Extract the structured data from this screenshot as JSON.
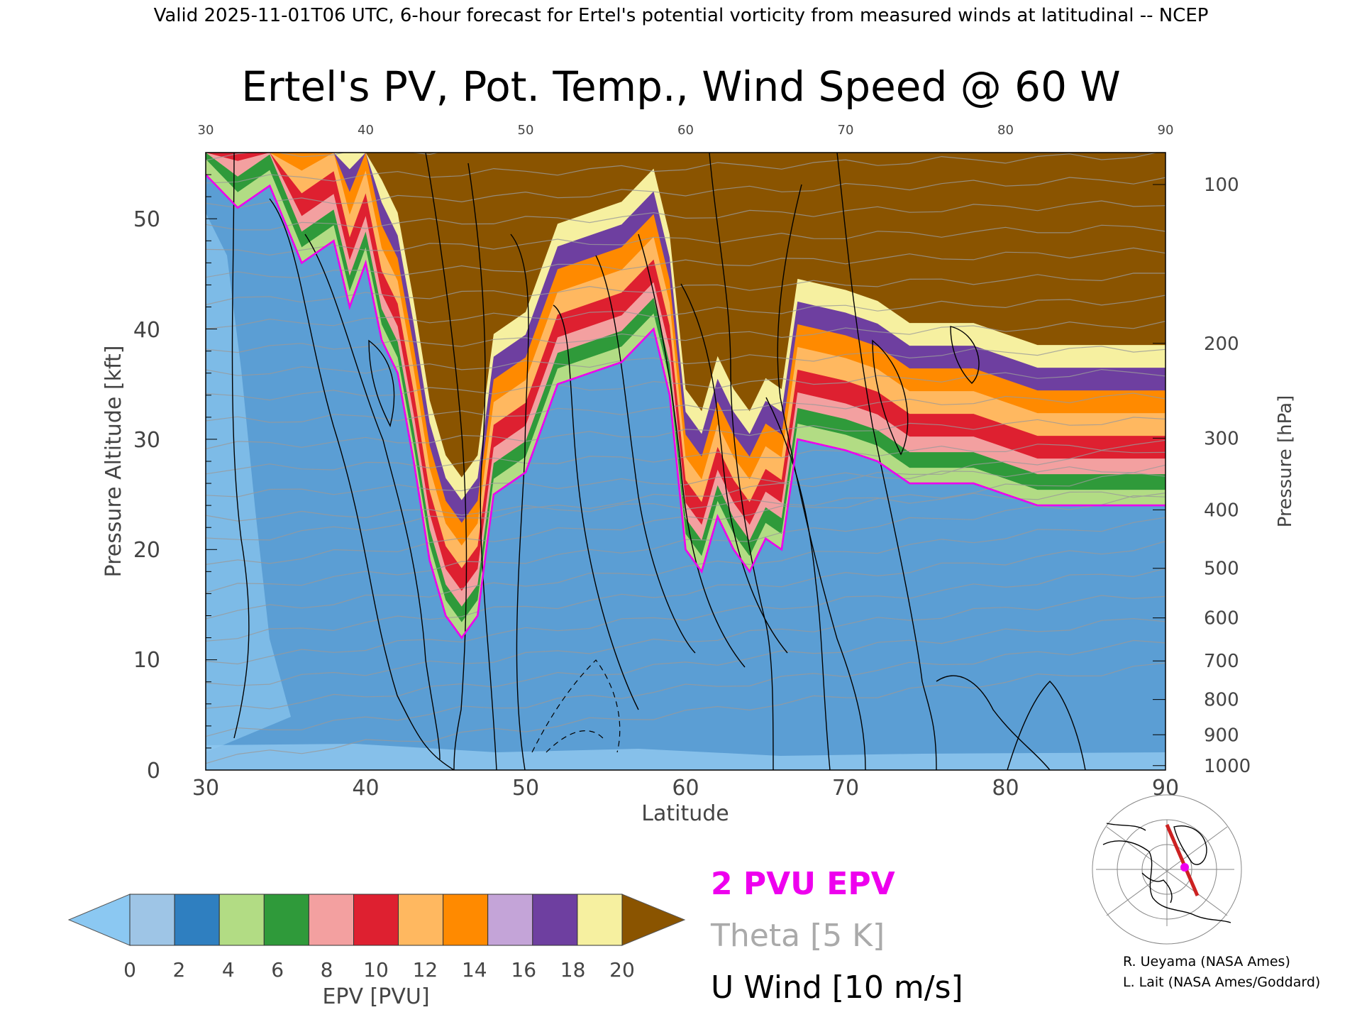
{
  "header": "Valid 2025-11-01T06 UTC, 6-hour forecast for Ertel's potential vorticity from measured winds at latitudinal -- NCEP",
  "title": "Ertel's PV, Pot. Temp., Wind Speed @ 60 W",
  "chart_data": {
    "type": "heatmap",
    "xlabel": "Latitude",
    "ylabel_left": "Pressure Altitude [kft]",
    "ylabel_right": "Pressure [hPa]",
    "xlim": [
      30,
      90
    ],
    "ylim": [
      0,
      56
    ],
    "x_ticks": [
      "30",
      "40",
      "50",
      "60",
      "70",
      "80",
      "90"
    ],
    "top_ticks": [
      "30",
      "40",
      "50",
      "60",
      "70",
      "80",
      "90"
    ],
    "y_ticks": [
      "0",
      "10",
      "20",
      "30",
      "40",
      "50"
    ],
    "pressure_ticks": [
      {
        "label": "100",
        "kft": 53.1
      },
      {
        "label": "200",
        "kft": 38.7
      },
      {
        "label": "300",
        "kft": 30.1
      },
      {
        "label": "400",
        "kft": 23.6
      },
      {
        "label": "500",
        "kft": 18.3
      },
      {
        "label": "600",
        "kft": 13.8
      },
      {
        "label": "700",
        "kft": 9.9
      },
      {
        "label": "800",
        "kft": 6.4
      },
      {
        "label": "900",
        "kft": 3.2
      },
      {
        "label": "1000",
        "kft": 0.4
      }
    ],
    "tropopause_2pvu_kft": [
      {
        "lat": 30,
        "kft": 54
      },
      {
        "lat": 32,
        "kft": 51
      },
      {
        "lat": 34,
        "kft": 53
      },
      {
        "lat": 36,
        "kft": 46
      },
      {
        "lat": 38,
        "kft": 48
      },
      {
        "lat": 39,
        "kft": 42
      },
      {
        "lat": 40,
        "kft": 46
      },
      {
        "lat": 41,
        "kft": 39
      },
      {
        "lat": 42,
        "kft": 36
      },
      {
        "lat": 43,
        "kft": 28
      },
      {
        "lat": 44,
        "kft": 19
      },
      {
        "lat": 45,
        "kft": 14
      },
      {
        "lat": 46,
        "kft": 12
      },
      {
        "lat": 47,
        "kft": 14
      },
      {
        "lat": 48,
        "kft": 25
      },
      {
        "lat": 50,
        "kft": 27
      },
      {
        "lat": 52,
        "kft": 35
      },
      {
        "lat": 54,
        "kft": 36
      },
      {
        "lat": 56,
        "kft": 37
      },
      {
        "lat": 58,
        "kft": 40
      },
      {
        "lat": 59,
        "kft": 34
      },
      {
        "lat": 60,
        "kft": 20
      },
      {
        "lat": 61,
        "kft": 18
      },
      {
        "lat": 62,
        "kft": 23
      },
      {
        "lat": 63,
        "kft": 20
      },
      {
        "lat": 64,
        "kft": 18
      },
      {
        "lat": 65,
        "kft": 21
      },
      {
        "lat": 66,
        "kft": 20
      },
      {
        "lat": 67,
        "kft": 30
      },
      {
        "lat": 70,
        "kft": 29
      },
      {
        "lat": 72,
        "kft": 28
      },
      {
        "lat": 74,
        "kft": 26
      },
      {
        "lat": 78,
        "kft": 26
      },
      {
        "lat": 80,
        "kft": 25
      },
      {
        "lat": 82,
        "kft": 24
      },
      {
        "lat": 86,
        "kft": 24
      },
      {
        "lat": 88,
        "kft": 24
      },
      {
        "lat": 90,
        "kft": 24
      }
    ],
    "colorbar": {
      "label": "EPV [PVU]",
      "ticks": [
        "0",
        "2",
        "4",
        "6",
        "8",
        "10",
        "12",
        "14",
        "16",
        "18",
        "20"
      ],
      "colors": [
        "#9ec5e6",
        "#2f7fc0",
        "#b2dc84",
        "#2f9a3a",
        "#f3a0a0",
        "#de2030",
        "#ffb860",
        "#ff8a00",
        "#c4a4d8",
        "#6e3fa0",
        "#f6f0a0"
      ],
      "under_color": "#8bc8f2",
      "over_color": "#8a5400"
    },
    "legend": [
      {
        "label": "2 PVU EPV",
        "color": "#ee00ee"
      },
      {
        "label": "Theta [5 K]",
        "color": "#aaaaaa"
      },
      {
        "label": "U Wind [10 m/s]",
        "color": "#000000"
      }
    ]
  },
  "credits": [
    "R. Ueyama (NASA Ames)",
    "L. Lait (NASA Ames/Goddard)"
  ]
}
